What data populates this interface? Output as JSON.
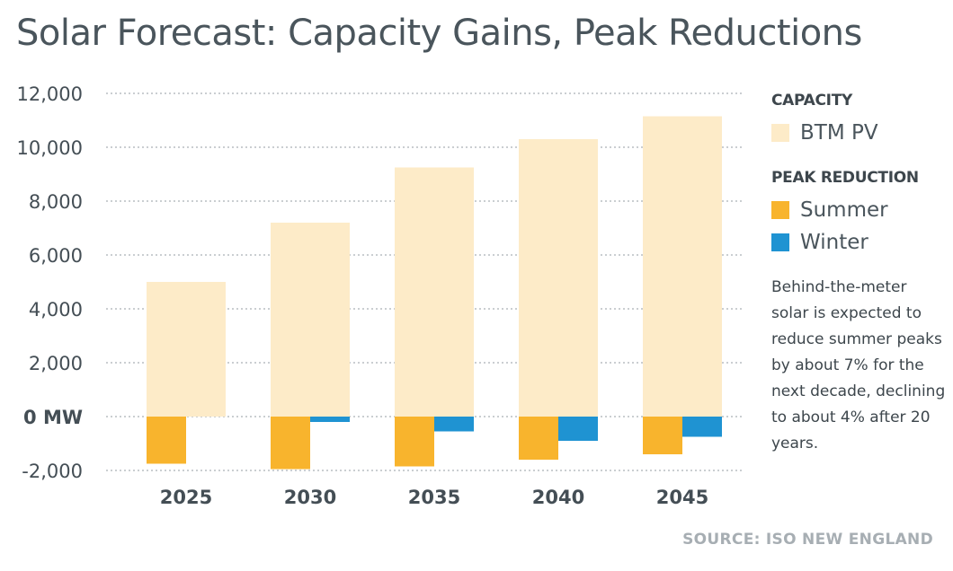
{
  "title": "Solar Forecast: Capacity Gains, Peak Reductions",
  "source": "SOURCE: ISO NEW ENGLAND",
  "note": "Behind-the-meter solar is expected to reduce summer peaks by about 7% for the next decade, declining to about 4% after 20 years.",
  "legend": {
    "capacity_heading": "CAPACITY",
    "peak_heading": "PEAK REDUCTION",
    "items": [
      {
        "label": "BTM PV",
        "color": "#fdebc8"
      },
      {
        "label": "Summer",
        "color": "#f8b42d"
      },
      {
        "label": "Winter",
        "color": "#1f93d2"
      }
    ]
  },
  "chart_data": {
    "type": "bar",
    "categories": [
      "2025",
      "2030",
      "2035",
      "2040",
      "2045"
    ],
    "series": [
      {
        "name": "BTM PV",
        "color": "#fdebc8",
        "values": [
          5000,
          7200,
          9250,
          10300,
          11150
        ]
      },
      {
        "name": "Summer",
        "color": "#f8b42d",
        "values": [
          -1750,
          -1950,
          -1850,
          -1600,
          -1400
        ]
      },
      {
        "name": "Winter",
        "color": "#1f93d2",
        "values": [
          0,
          -200,
          -550,
          -900,
          -750
        ]
      }
    ],
    "ylim": [
      -2000,
      12000
    ],
    "yticks": [
      12000,
      10000,
      8000,
      6000,
      4000,
      2000,
      0,
      -2000
    ],
    "ytick_labels": [
      "12,000",
      "10,000",
      "8,000",
      "6,000",
      "4,000",
      "2,000",
      "0 MW",
      "-2,000"
    ],
    "grid": "dotted horizontal",
    "legend_position": "right"
  }
}
